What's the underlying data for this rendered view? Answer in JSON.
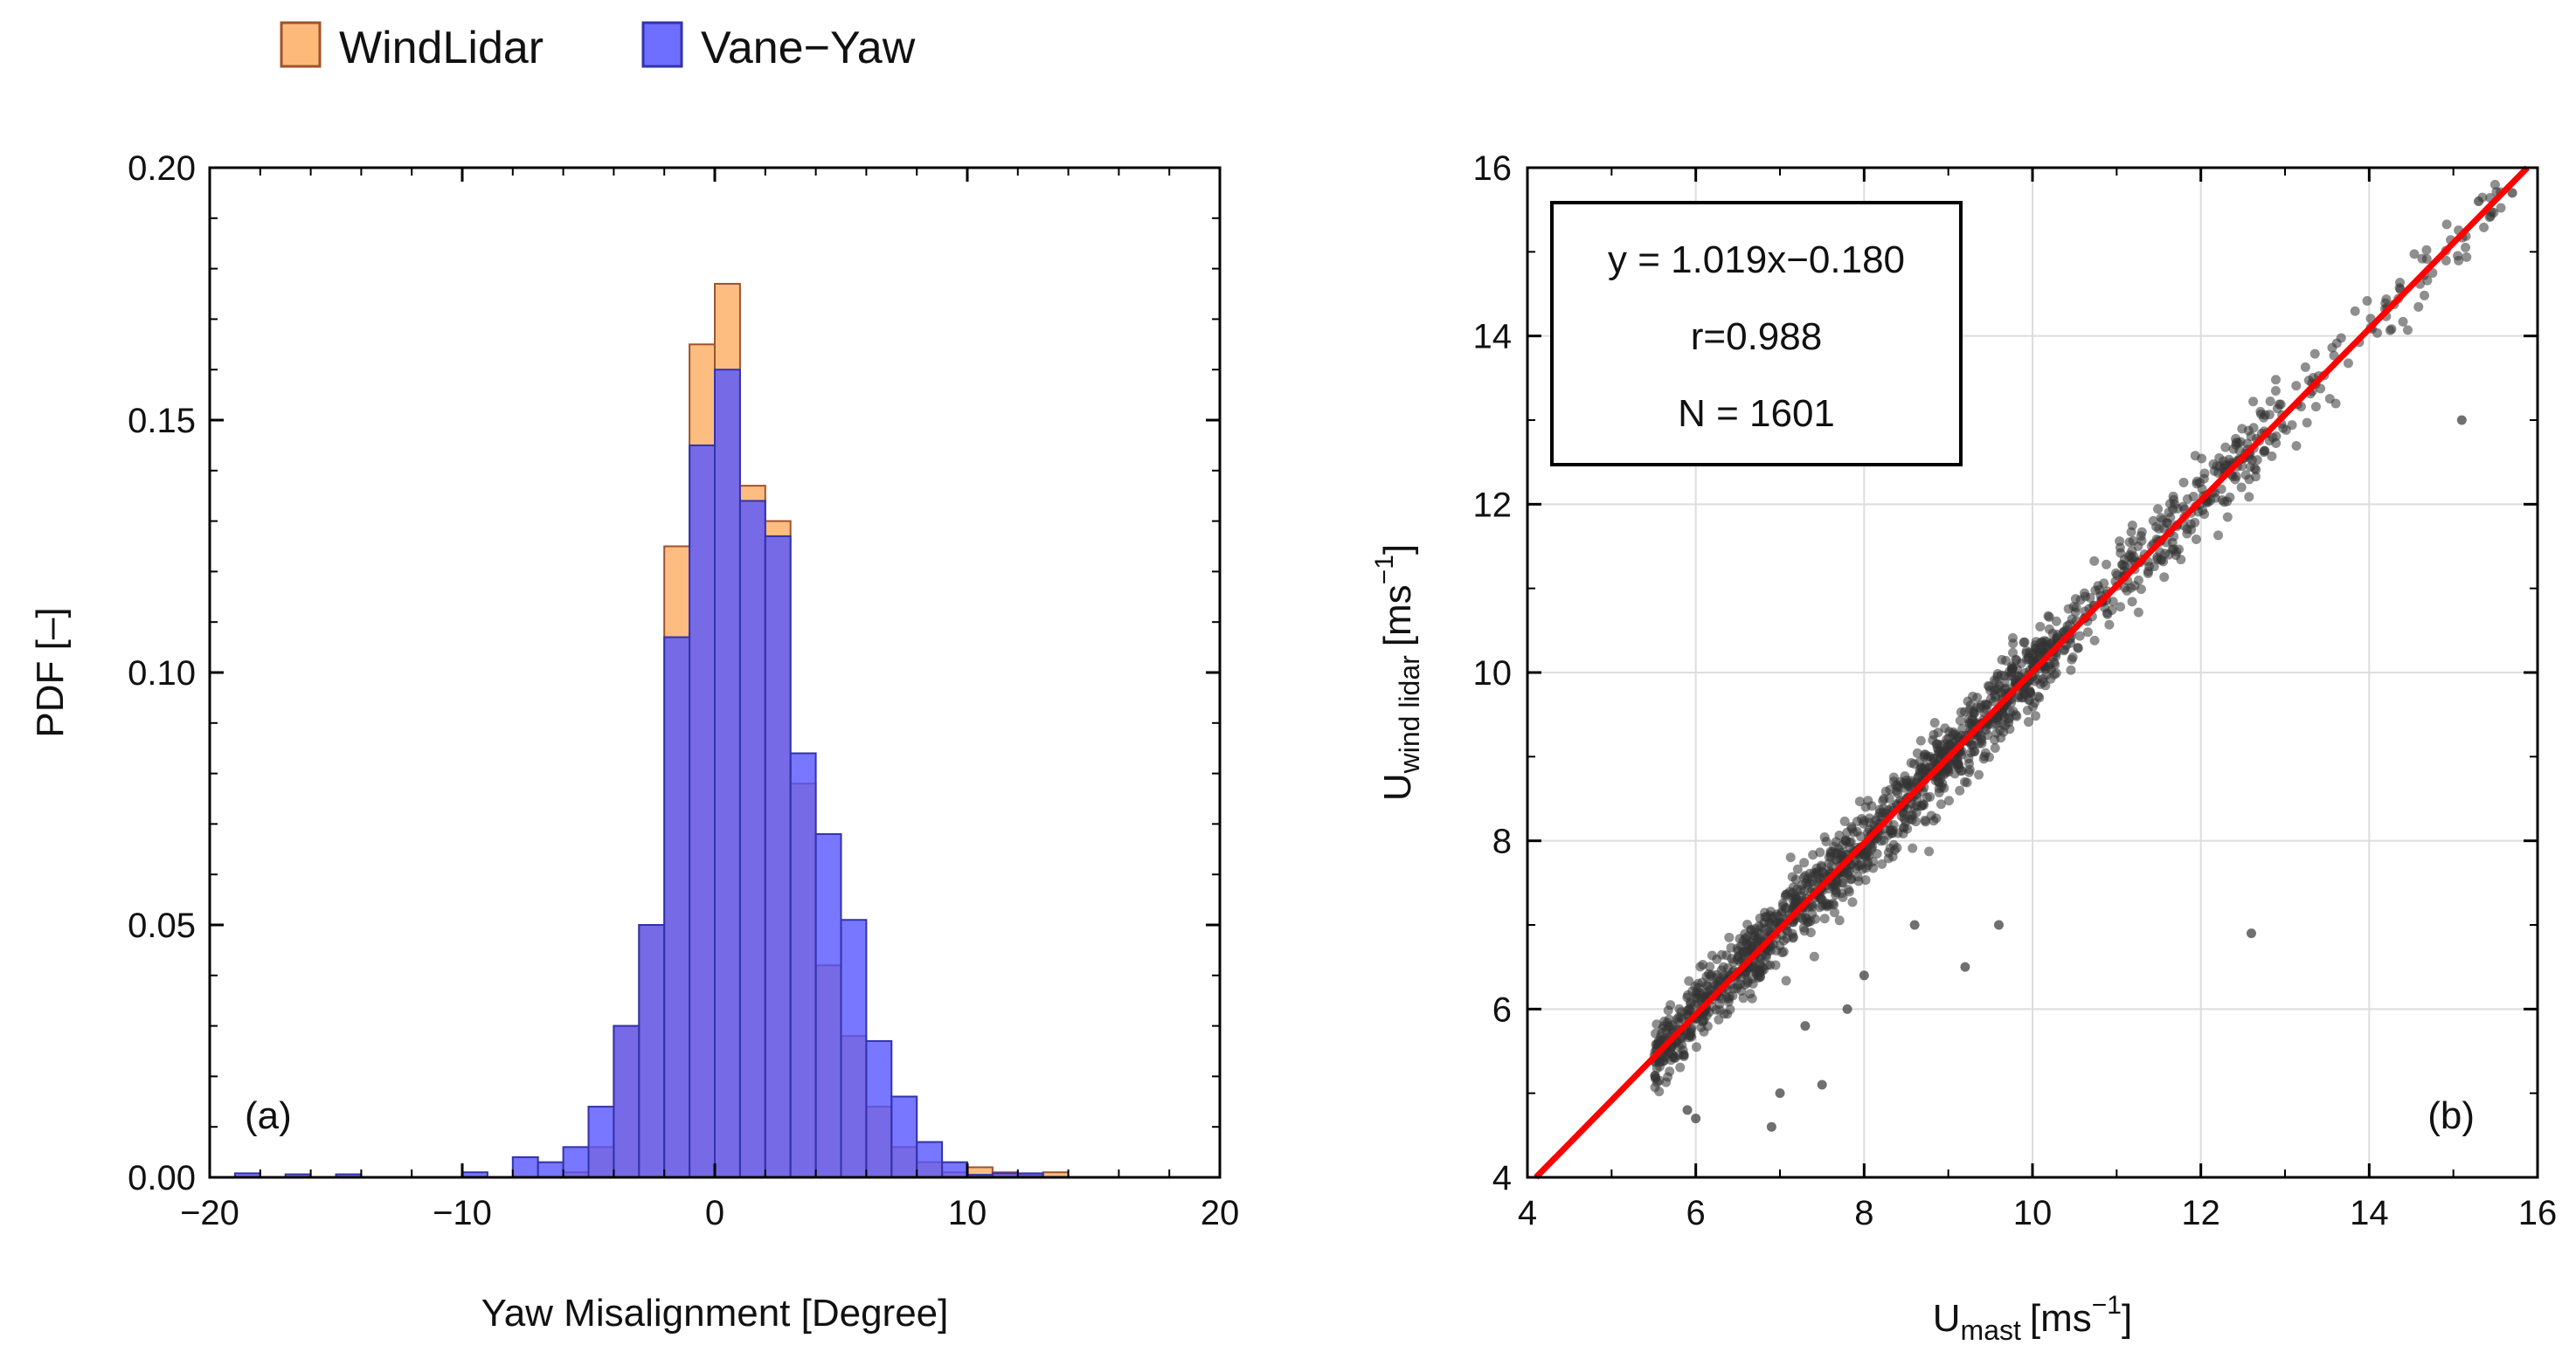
{
  "chart_data": [
    {
      "type": "bar",
      "panel_label": "(a)",
      "title": "",
      "xlabel": "Yaw Misalignment [Degree]",
      "ylabel": "PDF [–]",
      "xlim": [
        -20,
        20
      ],
      "ylim": [
        0,
        0.2
      ],
      "xticks": [
        "−20",
        "−10",
        "0",
        "10",
        "20"
      ],
      "yticks": [
        "0.00",
        "0.05",
        "0.10",
        "0.15",
        "0.20"
      ],
      "bin_width": 1,
      "legend": {
        "position": "top-left",
        "entries": [
          "WindLidar",
          "Vane−Yaw"
        ]
      },
      "series": [
        {
          "name": "WindLidar",
          "color": "#FDB97A",
          "edge": "#A0522D",
          "bins": [
            [
              -6,
              -5,
              0.001
            ],
            [
              -5,
              -4,
              0.006
            ],
            [
              -4,
              -3,
              0.03
            ],
            [
              -3,
              -2,
              0.05
            ],
            [
              -2,
              -1,
              0.125
            ],
            [
              -1,
              0,
              0.165
            ],
            [
              0,
              1,
              0.177
            ],
            [
              1,
              2,
              0.137
            ],
            [
              2,
              3,
              0.13
            ],
            [
              3,
              4,
              0.078
            ],
            [
              4,
              5,
              0.042
            ],
            [
              5,
              6,
              0.028
            ],
            [
              6,
              7,
              0.014
            ],
            [
              7,
              8,
              0.006
            ],
            [
              8,
              9,
              0.003
            ],
            [
              9,
              10,
              0.001
            ],
            [
              10,
              11,
              0.002
            ],
            [
              11,
              12,
              0.001
            ],
            [
              12,
              13,
              0.0005
            ],
            [
              13,
              14,
              0.001
            ]
          ]
        },
        {
          "name": "Vane−Yaw",
          "color": "#5555FF",
          "edge": "#3333AA",
          "bins": [
            [
              -19,
              -18,
              0.0008
            ],
            [
              -17,
              -16,
              0.0006
            ],
            [
              -15,
              -14,
              0.0006
            ],
            [
              -10,
              -9,
              0.001
            ],
            [
              -8,
              -7,
              0.004
            ],
            [
              -7,
              -6,
              0.003
            ],
            [
              -6,
              -5,
              0.006
            ],
            [
              -5,
              -4,
              0.014
            ],
            [
              -4,
              -3,
              0.03
            ],
            [
              -3,
              -2,
              0.05
            ],
            [
              -2,
              -1,
              0.107
            ],
            [
              -1,
              0,
              0.145
            ],
            [
              0,
              1,
              0.16
            ],
            [
              1,
              2,
              0.134
            ],
            [
              2,
              3,
              0.127
            ],
            [
              3,
              4,
              0.084
            ],
            [
              4,
              5,
              0.068
            ],
            [
              5,
              6,
              0.051
            ],
            [
              6,
              7,
              0.027
            ],
            [
              7,
              8,
              0.016
            ],
            [
              8,
              9,
              0.007
            ],
            [
              9,
              10,
              0.003
            ],
            [
              10,
              11,
              0.0005
            ],
            [
              11,
              12,
              0.0008
            ],
            [
              12,
              13,
              0.0008
            ]
          ]
        }
      ]
    },
    {
      "type": "scatter",
      "panel_label": "(b)",
      "title": "",
      "xlabel": "U",
      "xlabel_sub": "mast",
      "xlabel_unit": "[ms",
      "xlabel_exp": "−1",
      "xlabel_close": "]",
      "ylabel": "U",
      "ylabel_sub": "wind lidar",
      "ylabel_unit": "[ms",
      "ylabel_exp": "−1",
      "ylabel_close": "]",
      "xlim": [
        4,
        16
      ],
      "ylim": [
        4,
        16
      ],
      "xticks": [
        "4",
        "6",
        "8",
        "10",
        "12",
        "14",
        "16"
      ],
      "yticks": [
        "4",
        "6",
        "8",
        "10",
        "12",
        "14",
        "16"
      ],
      "grid": true,
      "point_color": "#333333",
      "fit": {
        "slope": 1.019,
        "intercept": -0.18,
        "color": "#FF0000"
      },
      "stats_box": [
        "y = 1.019x−0.180",
        "r=0.988",
        "N = 1601"
      ],
      "n_points": 1601,
      "outliers": [
        [
          15.1,
          13.0
        ],
        [
          12.6,
          6.9
        ],
        [
          9.6,
          7.0
        ],
        [
          9.2,
          6.5
        ],
        [
          8.6,
          7.0
        ],
        [
          6.9,
          4.6
        ],
        [
          7.0,
          5.0
        ],
        [
          7.5,
          5.1
        ],
        [
          6.0,
          4.7
        ],
        [
          5.9,
          4.8
        ],
        [
          8.0,
          6.4
        ],
        [
          7.3,
          5.8
        ],
        [
          7.8,
          6.0
        ],
        [
          15.3,
          15.6
        ],
        [
          15.7,
          15.7
        ]
      ]
    }
  ]
}
